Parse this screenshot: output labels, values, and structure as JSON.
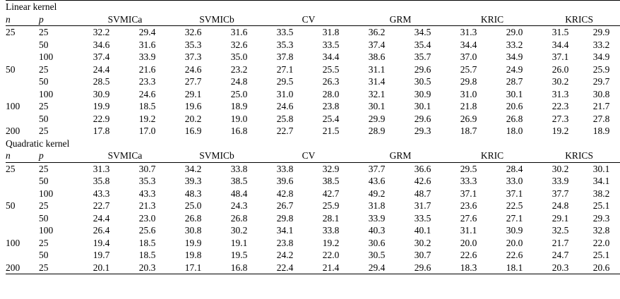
{
  "columns": {
    "n": "n",
    "p": "p",
    "methods": [
      "SVMICa",
      "SVMICb",
      "CV",
      "GRM",
      "KRIC",
      "KRICS"
    ]
  },
  "sections": [
    {
      "title": "Linear kernel",
      "rows": [
        {
          "n": "25",
          "p": "25",
          "values": [
            "32.2",
            "29.4",
            "32.6",
            "31.6",
            "33.5",
            "31.8",
            "36.2",
            "34.5",
            "31.3",
            "29.0",
            "31.5",
            "29.9"
          ]
        },
        {
          "n": "",
          "p": "50",
          "values": [
            "34.6",
            "31.6",
            "35.3",
            "32.6",
            "35.3",
            "33.5",
            "37.4",
            "35.4",
            "34.4",
            "33.2",
            "34.4",
            "33.2"
          ]
        },
        {
          "n": "",
          "p": "100",
          "values": [
            "37.4",
            "33.9",
            "37.3",
            "35.0",
            "37.8",
            "34.4",
            "38.6",
            "35.7",
            "37.0",
            "34.9",
            "37.1",
            "34.9"
          ]
        },
        {
          "n": "50",
          "p": "25",
          "values": [
            "24.4",
            "21.6",
            "24.6",
            "23.2",
            "27.1",
            "25.5",
            "31.1",
            "29.6",
            "25.7",
            "24.9",
            "26.0",
            "25.9"
          ]
        },
        {
          "n": "",
          "p": "50",
          "values": [
            "28.5",
            "23.3",
            "27.7",
            "24.8",
            "29.5",
            "26.3",
            "31.4",
            "30.5",
            "29.8",
            "28.7",
            "30.2",
            "29.7"
          ]
        },
        {
          "n": "",
          "p": "100",
          "values": [
            "30.9",
            "24.6",
            "29.1",
            "25.0",
            "31.0",
            "28.0",
            "32.1",
            "30.9",
            "31.0",
            "30.1",
            "31.3",
            "30.8"
          ]
        },
        {
          "n": "100",
          "p": "25",
          "values": [
            "19.9",
            "18.5",
            "19.6",
            "18.9",
            "24.6",
            "23.8",
            "30.1",
            "30.1",
            "21.8",
            "20.6",
            "22.3",
            "21.7"
          ]
        },
        {
          "n": "",
          "p": "50",
          "values": [
            "22.9",
            "19.2",
            "20.2",
            "19.0",
            "25.8",
            "25.4",
            "29.9",
            "29.6",
            "26.9",
            "26.8",
            "27.3",
            "27.8"
          ]
        },
        {
          "n": "200",
          "p": "25",
          "values": [
            "17.8",
            "17.0",
            "16.9",
            "16.8",
            "22.7",
            "21.5",
            "28.9",
            "29.3",
            "18.7",
            "18.0",
            "19.2",
            "18.9"
          ]
        }
      ]
    },
    {
      "title": "Quadratic kernel",
      "rows": [
        {
          "n": "25",
          "p": "25",
          "values": [
            "31.3",
            "30.7",
            "34.2",
            "33.8",
            "33.8",
            "32.9",
            "37.7",
            "36.6",
            "29.5",
            "28.4",
            "30.2",
            "30.1"
          ]
        },
        {
          "n": "",
          "p": "50",
          "values": [
            "35.8",
            "35.3",
            "39.3",
            "38.5",
            "39.6",
            "38.5",
            "43.6",
            "42.6",
            "33.3",
            "33.0",
            "33.9",
            "34.1"
          ]
        },
        {
          "n": "",
          "p": "100",
          "values": [
            "43.3",
            "43.3",
            "48.3",
            "48.4",
            "42.8",
            "42.7",
            "49.2",
            "48.7",
            "37.1",
            "37.1",
            "37.7",
            "38.2"
          ]
        },
        {
          "n": "50",
          "p": "25",
          "values": [
            "22.7",
            "21.3",
            "25.0",
            "24.3",
            "26.7",
            "25.9",
            "31.8",
            "31.7",
            "23.6",
            "22.5",
            "24.8",
            "25.1"
          ]
        },
        {
          "n": "",
          "p": "50",
          "values": [
            "24.4",
            "23.0",
            "26.8",
            "26.8",
            "29.8",
            "28.1",
            "33.9",
            "33.5",
            "27.6",
            "27.1",
            "29.1",
            "29.3"
          ]
        },
        {
          "n": "",
          "p": "100",
          "values": [
            "26.4",
            "25.6",
            "30.8",
            "30.2",
            "34.1",
            "33.8",
            "40.3",
            "40.1",
            "31.1",
            "30.9",
            "32.5",
            "32.8"
          ]
        },
        {
          "n": "100",
          "p": "25",
          "values": [
            "19.4",
            "18.5",
            "19.9",
            "19.1",
            "23.8",
            "19.2",
            "30.6",
            "30.2",
            "20.0",
            "20.0",
            "21.7",
            "22.0"
          ]
        },
        {
          "n": "",
          "p": "50",
          "values": [
            "19.7",
            "18.5",
            "19.8",
            "19.5",
            "24.2",
            "22.0",
            "30.5",
            "30.7",
            "22.6",
            "22.6",
            "24.7",
            "25.1"
          ]
        },
        {
          "n": "200",
          "p": "25",
          "values": [
            "20.1",
            "20.3",
            "17.1",
            "16.8",
            "22.4",
            "21.4",
            "29.4",
            "29.6",
            "18.3",
            "18.1",
            "20.3",
            "20.6"
          ]
        }
      ]
    }
  ]
}
